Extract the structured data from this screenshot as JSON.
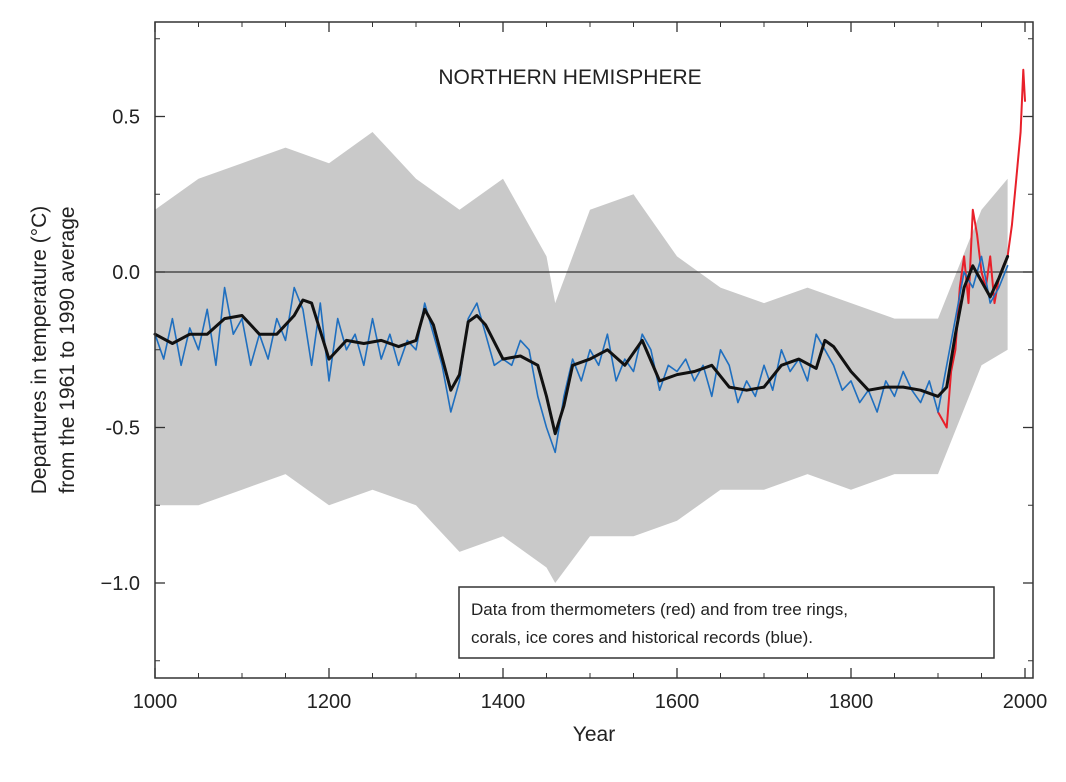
{
  "chart_data": {
    "type": "line",
    "title": "NORTHERN HEMISPHERE",
    "xlabel": "Year",
    "ylabel_line1": "Departures in temperature (°C)",
    "ylabel_line2": "from the 1961 to 1990 average",
    "xlim": [
      1000,
      2010
    ],
    "ylim": [
      -1.3,
      0.75
    ],
    "xticks": [
      1000,
      1200,
      1400,
      1600,
      1800,
      2000
    ],
    "xtick_labels": [
      "1000",
      "1200",
      "1400",
      "1600",
      "1800",
      "2000"
    ],
    "yticks": [
      -1.0,
      -0.5,
      0.0,
      0.5
    ],
    "ytick_labels": [
      "−1.0",
      "-0.5",
      "0.0",
      "0.5"
    ],
    "reference_line": 0.0,
    "legend_lines": [
      "Data from thermometers (red) and from tree rings,",
      "corals, ice cores and historical records (blue)."
    ],
    "colors": {
      "uncertainty": "#c9c9c9",
      "proxy": "#1f6fbf",
      "smooth": "#111111",
      "thermometer": "#e8202a",
      "zero_line": "#333333"
    },
    "series": [
      {
        "name": "Uncertainty range (grey)",
        "x": [
          1000,
          1050,
          1100,
          1150,
          1200,
          1250,
          1300,
          1350,
          1400,
          1450,
          1460,
          1500,
          1550,
          1600,
          1650,
          1700,
          1750,
          1800,
          1850,
          1900,
          1950,
          1980
        ],
        "upper": [
          0.2,
          0.3,
          0.35,
          0.4,
          0.35,
          0.45,
          0.3,
          0.2,
          0.3,
          0.05,
          -0.1,
          0.2,
          0.25,
          0.05,
          -0.05,
          -0.1,
          -0.05,
          -0.1,
          -0.15,
          -0.15,
          0.2,
          0.3
        ],
        "lower": [
          -0.75,
          -0.75,
          -0.7,
          -0.65,
          -0.75,
          -0.7,
          -0.75,
          -0.9,
          -0.85,
          -0.95,
          -1.0,
          -0.85,
          -0.85,
          -0.8,
          -0.7,
          -0.7,
          -0.65,
          -0.7,
          -0.65,
          -0.65,
          -0.3,
          -0.25
        ]
      },
      {
        "name": "Proxy records (blue)",
        "x": [
          1000,
          1010,
          1020,
          1030,
          1040,
          1050,
          1060,
          1070,
          1080,
          1090,
          1100,
          1110,
          1120,
          1130,
          1140,
          1150,
          1160,
          1170,
          1180,
          1190,
          1200,
          1210,
          1220,
          1230,
          1240,
          1250,
          1260,
          1270,
          1280,
          1290,
          1300,
          1310,
          1320,
          1330,
          1340,
          1350,
          1360,
          1370,
          1380,
          1390,
          1400,
          1410,
          1420,
          1430,
          1440,
          1450,
          1460,
          1470,
          1480,
          1490,
          1500,
          1510,
          1520,
          1530,
          1540,
          1550,
          1560,
          1570,
          1580,
          1590,
          1600,
          1610,
          1620,
          1630,
          1640,
          1650,
          1660,
          1670,
          1680,
          1690,
          1700,
          1710,
          1720,
          1730,
          1740,
          1750,
          1760,
          1770,
          1780,
          1790,
          1800,
          1810,
          1820,
          1830,
          1840,
          1850,
          1860,
          1870,
          1880,
          1890,
          1900,
          1910,
          1920,
          1930,
          1940,
          1950,
          1960,
          1970,
          1980
        ],
        "values": [
          -0.2,
          -0.28,
          -0.15,
          -0.3,
          -0.18,
          -0.25,
          -0.12,
          -0.3,
          -0.05,
          -0.2,
          -0.15,
          -0.3,
          -0.2,
          -0.28,
          -0.15,
          -0.22,
          -0.05,
          -0.12,
          -0.3,
          -0.1,
          -0.35,
          -0.15,
          -0.25,
          -0.2,
          -0.3,
          -0.15,
          -0.28,
          -0.2,
          -0.3,
          -0.22,
          -0.25,
          -0.1,
          -0.2,
          -0.3,
          -0.45,
          -0.35,
          -0.15,
          -0.1,
          -0.2,
          -0.3,
          -0.28,
          -0.3,
          -0.22,
          -0.25,
          -0.4,
          -0.5,
          -0.58,
          -0.4,
          -0.28,
          -0.35,
          -0.25,
          -0.3,
          -0.2,
          -0.35,
          -0.28,
          -0.32,
          -0.2,
          -0.25,
          -0.38,
          -0.3,
          -0.32,
          -0.28,
          -0.35,
          -0.3,
          -0.4,
          -0.25,
          -0.3,
          -0.42,
          -0.35,
          -0.4,
          -0.3,
          -0.38,
          -0.25,
          -0.32,
          -0.28,
          -0.35,
          -0.2,
          -0.25,
          -0.3,
          -0.38,
          -0.35,
          -0.42,
          -0.38,
          -0.45,
          -0.35,
          -0.4,
          -0.32,
          -0.38,
          -0.42,
          -0.35,
          -0.45,
          -0.3,
          -0.15,
          0.0,
          -0.05,
          0.05,
          -0.1,
          -0.05,
          0.02
        ]
      },
      {
        "name": "Smoothed (black)",
        "x": [
          1000,
          1020,
          1040,
          1060,
          1080,
          1100,
          1120,
          1140,
          1160,
          1170,
          1180,
          1200,
          1220,
          1240,
          1260,
          1280,
          1300,
          1310,
          1320,
          1340,
          1350,
          1360,
          1370,
          1380,
          1400,
          1420,
          1440,
          1450,
          1460,
          1470,
          1480,
          1500,
          1520,
          1540,
          1560,
          1580,
          1600,
          1620,
          1640,
          1660,
          1680,
          1700,
          1720,
          1740,
          1760,
          1770,
          1780,
          1800,
          1820,
          1840,
          1860,
          1880,
          1900,
          1910,
          1920,
          1930,
          1940,
          1950,
          1960,
          1970,
          1980
        ],
        "values": [
          -0.2,
          -0.23,
          -0.2,
          -0.2,
          -0.15,
          -0.14,
          -0.2,
          -0.2,
          -0.14,
          -0.09,
          -0.1,
          -0.28,
          -0.22,
          -0.23,
          -0.22,
          -0.24,
          -0.22,
          -0.12,
          -0.17,
          -0.38,
          -0.33,
          -0.16,
          -0.14,
          -0.17,
          -0.28,
          -0.27,
          -0.3,
          -0.4,
          -0.52,
          -0.43,
          -0.3,
          -0.28,
          -0.25,
          -0.3,
          -0.22,
          -0.35,
          -0.33,
          -0.32,
          -0.3,
          -0.37,
          -0.38,
          -0.37,
          -0.3,
          -0.28,
          -0.31,
          -0.22,
          -0.24,
          -0.32,
          -0.38,
          -0.37,
          -0.37,
          -0.38,
          -0.4,
          -0.37,
          -0.2,
          -0.05,
          0.02,
          -0.03,
          -0.08,
          -0.02,
          0.05
        ]
      },
      {
        "name": "Thermometers (red)",
        "x": [
          1900,
          1910,
          1915,
          1920,
          1925,
          1930,
          1935,
          1940,
          1945,
          1950,
          1955,
          1960,
          1965,
          1970,
          1975,
          1980,
          1985,
          1990,
          1995,
          1998,
          2000
        ],
        "values": [
          -0.45,
          -0.5,
          -0.32,
          -0.25,
          -0.05,
          0.05,
          -0.1,
          0.2,
          0.12,
          0.0,
          -0.05,
          0.05,
          -0.1,
          -0.02,
          0.02,
          0.05,
          0.15,
          0.3,
          0.45,
          0.65,
          0.55
        ]
      }
    ]
  }
}
